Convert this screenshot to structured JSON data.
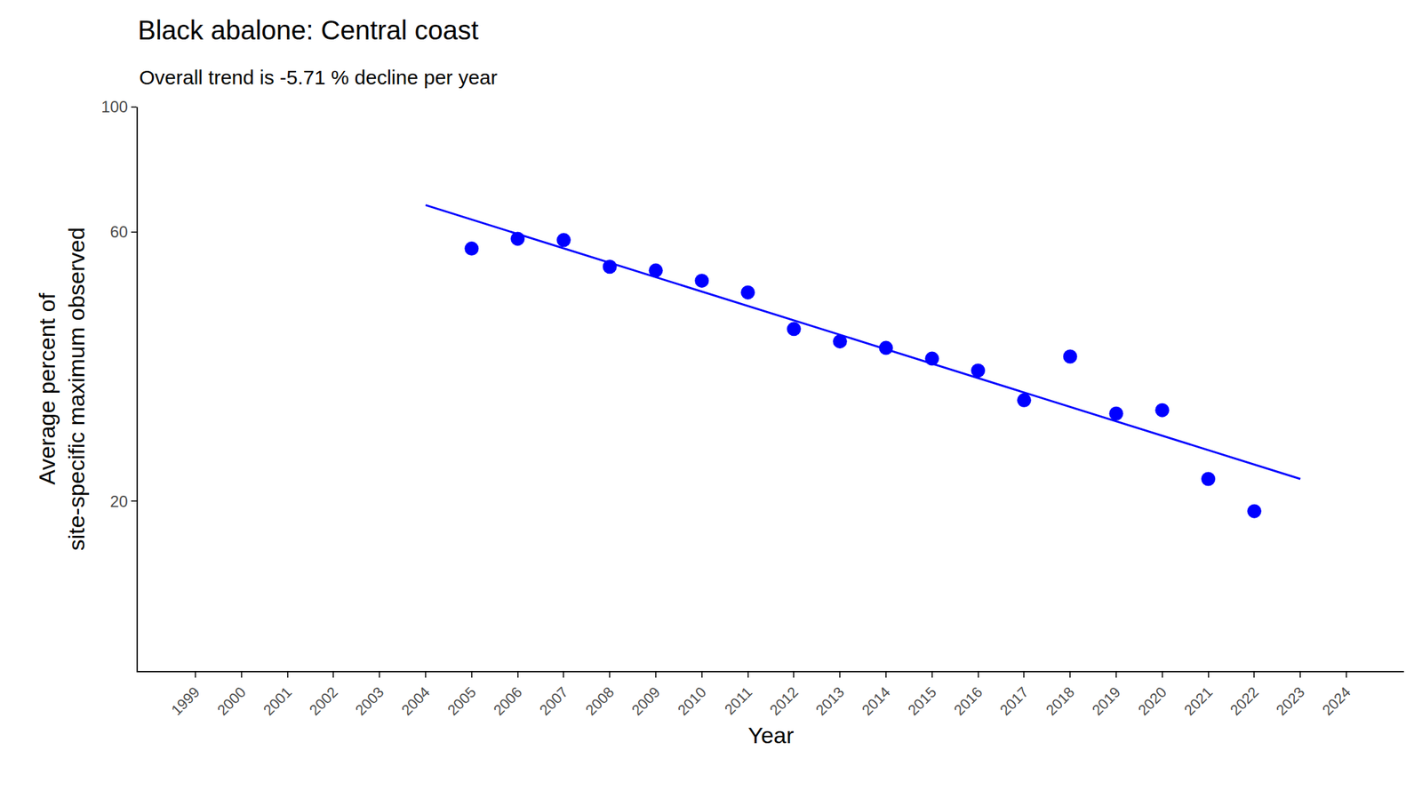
{
  "chart_data": {
    "type": "scatter",
    "title": "Black abalone: Central coast",
    "subtitle": "Overall trend is -5.71 % decline per year",
    "x_label": "Year",
    "y_label": "Average percent of\nsite-specific maximum observed",
    "log": "y",
    "grid": false,
    "xlim": [
      1997.75,
      2025.25
    ],
    "xticks": [
      1999,
      2000,
      2001,
      2002,
      2003,
      2004,
      2005,
      2006,
      2007,
      2008,
      2009,
      2010,
      2011,
      2012,
      2013,
      2014,
      2015,
      2016,
      2017,
      2018,
      2019,
      2020,
      2021,
      2022,
      2023,
      2024
    ],
    "ylim": [
      10,
      100
    ],
    "yticks": [
      20,
      60,
      100
    ],
    "series": [
      {
        "type": "scatter",
        "marker": "circle",
        "color": "#0000ff",
        "x": [
          2005,
          2006,
          2007,
          2008,
          2009,
          2010,
          2011,
          2012,
          2013,
          2014,
          2015,
          2016,
          2017,
          2018,
          2019,
          2020,
          2021,
          2022
        ],
        "values": [
          56.1,
          58.4,
          58.1,
          52.1,
          51.3,
          49.2,
          46.9,
          40.4,
          38.4,
          37.4,
          35.8,
          34.1,
          30.2,
          36.1,
          28.6,
          29.0,
          21.9,
          19.2
        ]
      },
      {
        "type": "line",
        "line_style": "solid",
        "color": "#0000ff",
        "x": [
          2004,
          2023
        ],
        "values": [
          67.0,
          21.9
        ]
      }
    ]
  }
}
